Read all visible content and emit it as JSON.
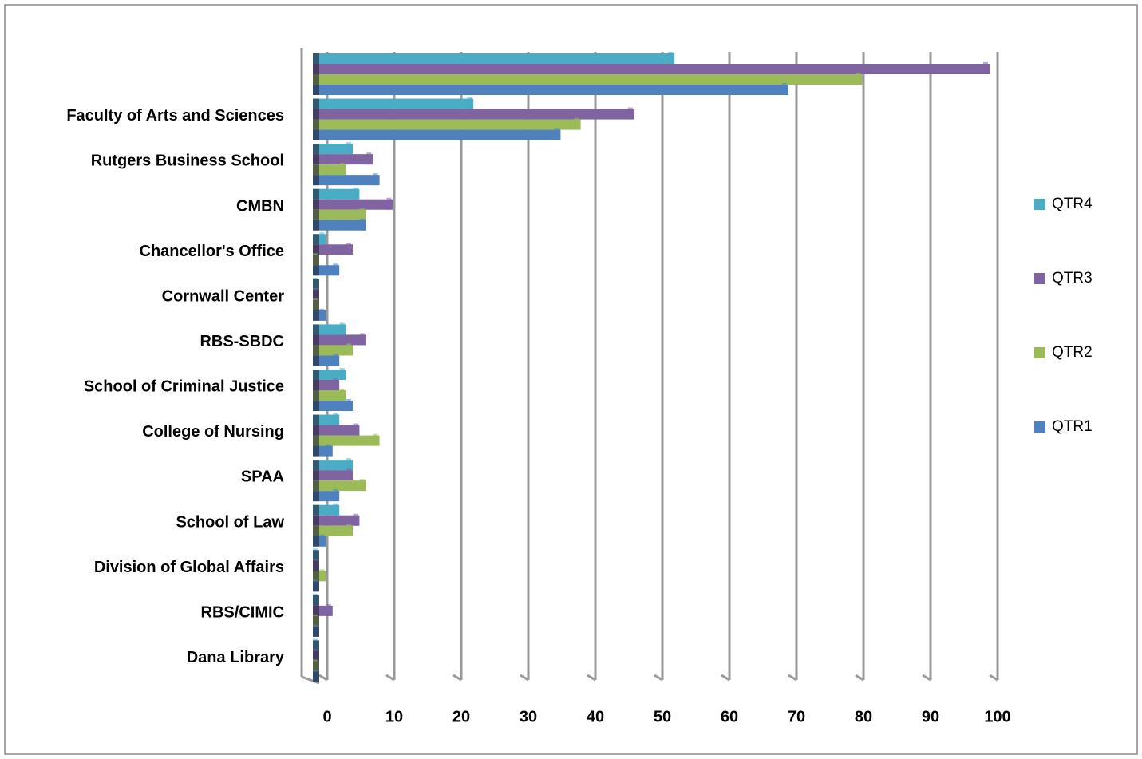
{
  "chart_data": {
    "type": "bar",
    "orientation": "horizontal",
    "categories": [
      null,
      "Faculty of Arts and Sciences",
      "Rutgers Business School",
      "CMBN",
      "Chancellor's Office",
      "Cornwall Center",
      "RBS-SBDC",
      "School of Criminal Justice",
      "College of Nursing",
      "SPAA",
      "School of Law",
      "Division of Global Affairs",
      "RBS/CIMIC",
      "Dana Library"
    ],
    "series": [
      {
        "name": "QTR4",
        "color": "#4bacc6",
        "values": [
          53,
          23,
          5,
          6,
          1,
          0,
          4,
          4,
          3,
          5,
          3,
          0,
          0,
          0
        ]
      },
      {
        "name": "QTR3",
        "color": "#8064a2",
        "values": [
          100,
          47,
          8,
          11,
          5,
          0,
          7,
          3,
          6,
          5,
          6,
          0,
          2,
          0
        ]
      },
      {
        "name": "QTR2",
        "color": "#9bbb59",
        "values": [
          81,
          39,
          4,
          7,
          0,
          0,
          5,
          4,
          9,
          7,
          5,
          1,
          0,
          0
        ]
      },
      {
        "name": "QTR1",
        "color": "#4f81bd",
        "values": [
          70,
          36,
          9,
          7,
          3,
          1,
          3,
          5,
          2,
          3,
          1,
          0,
          0,
          0
        ]
      }
    ],
    "xlim": [
      0,
      100
    ],
    "xticks": [
      0,
      10,
      20,
      30,
      40,
      50,
      60,
      70,
      80,
      90,
      100
    ],
    "grid": true,
    "legend": "right"
  }
}
